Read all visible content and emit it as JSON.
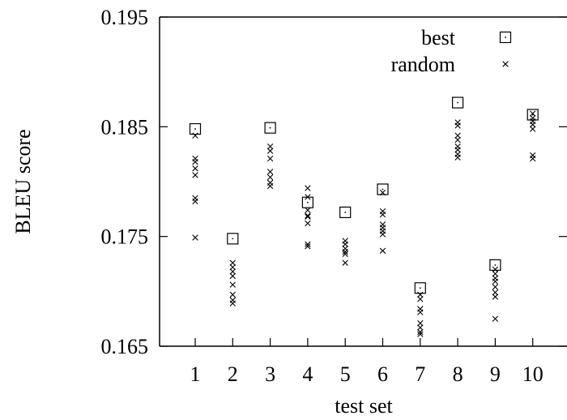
{
  "chart_data": {
    "type": "scatter",
    "xlabel": "test set",
    "ylabel": "BLEU score",
    "ylim": [
      0.165,
      0.195
    ],
    "yticks": [
      "0.165",
      "0.175",
      "0.185",
      "0.195"
    ],
    "x_categories": [
      "1",
      "2",
      "3",
      "4",
      "5",
      "6",
      "7",
      "8",
      "9",
      "10"
    ],
    "legend_position": "top-right",
    "series": [
      {
        "name": "best",
        "marker": "square",
        "points": [
          {
            "x": 1,
            "y": 0.1848
          },
          {
            "x": 2,
            "y": 0.1748
          },
          {
            "x": 3,
            "y": 0.1849
          },
          {
            "x": 4,
            "y": 0.1781
          },
          {
            "x": 5,
            "y": 0.1772
          },
          {
            "x": 6,
            "y": 0.1793
          },
          {
            "x": 7,
            "y": 0.1703
          },
          {
            "x": 8,
            "y": 0.1872
          },
          {
            "x": 9,
            "y": 0.1724
          },
          {
            "x": 10,
            "y": 0.1861
          }
        ]
      },
      {
        "name": "random",
        "marker": "cross",
        "points": [
          {
            "x": 1,
            "y": 0.1842
          },
          {
            "x": 1,
            "y": 0.1821
          },
          {
            "x": 1,
            "y": 0.1818
          },
          {
            "x": 1,
            "y": 0.1812
          },
          {
            "x": 1,
            "y": 0.1806
          },
          {
            "x": 1,
            "y": 0.1785
          },
          {
            "x": 1,
            "y": 0.1782
          },
          {
            "x": 1,
            "y": 0.1749
          },
          {
            "x": 2,
            "y": 0.1726
          },
          {
            "x": 2,
            "y": 0.1722
          },
          {
            "x": 2,
            "y": 0.1718
          },
          {
            "x": 2,
            "y": 0.1714
          },
          {
            "x": 2,
            "y": 0.1706
          },
          {
            "x": 2,
            "y": 0.1697
          },
          {
            "x": 2,
            "y": 0.1692
          },
          {
            "x": 2,
            "y": 0.1689
          },
          {
            "x": 3,
            "y": 0.1832
          },
          {
            "x": 3,
            "y": 0.1828
          },
          {
            "x": 3,
            "y": 0.1821
          },
          {
            "x": 3,
            "y": 0.1809
          },
          {
            "x": 3,
            "y": 0.1804
          },
          {
            "x": 3,
            "y": 0.1799
          },
          {
            "x": 3,
            "y": 0.1796
          },
          {
            "x": 4,
            "y": 0.1794
          },
          {
            "x": 4,
            "y": 0.1786
          },
          {
            "x": 4,
            "y": 0.1774
          },
          {
            "x": 4,
            "y": 0.1769
          },
          {
            "x": 4,
            "y": 0.1768
          },
          {
            "x": 4,
            "y": 0.1762
          },
          {
            "x": 4,
            "y": 0.1743
          },
          {
            "x": 4,
            "y": 0.1741
          },
          {
            "x": 5,
            "y": 0.1746
          },
          {
            "x": 5,
            "y": 0.1743
          },
          {
            "x": 5,
            "y": 0.1739
          },
          {
            "x": 5,
            "y": 0.1736
          },
          {
            "x": 5,
            "y": 0.1734
          },
          {
            "x": 5,
            "y": 0.1726
          },
          {
            "x": 6,
            "y": 0.179
          },
          {
            "x": 6,
            "y": 0.1773
          },
          {
            "x": 6,
            "y": 0.177
          },
          {
            "x": 6,
            "y": 0.1761
          },
          {
            "x": 6,
            "y": 0.1758
          },
          {
            "x": 6,
            "y": 0.1755
          },
          {
            "x": 6,
            "y": 0.1752
          },
          {
            "x": 6,
            "y": 0.1737
          },
          {
            "x": 7,
            "y": 0.1697
          },
          {
            "x": 7,
            "y": 0.1693
          },
          {
            "x": 7,
            "y": 0.1684
          },
          {
            "x": 7,
            "y": 0.1681
          },
          {
            "x": 7,
            "y": 0.1671
          },
          {
            "x": 7,
            "y": 0.1667
          },
          {
            "x": 7,
            "y": 0.1663
          },
          {
            "x": 7,
            "y": 0.1661
          },
          {
            "x": 8,
            "y": 0.1854
          },
          {
            "x": 8,
            "y": 0.1851
          },
          {
            "x": 8,
            "y": 0.1842
          },
          {
            "x": 8,
            "y": 0.1838
          },
          {
            "x": 8,
            "y": 0.1832
          },
          {
            "x": 8,
            "y": 0.1829
          },
          {
            "x": 8,
            "y": 0.1825
          },
          {
            "x": 8,
            "y": 0.1822
          },
          {
            "x": 9,
            "y": 0.172
          },
          {
            "x": 9,
            "y": 0.1716
          },
          {
            "x": 9,
            "y": 0.1712
          },
          {
            "x": 9,
            "y": 0.1709
          },
          {
            "x": 9,
            "y": 0.1704
          },
          {
            "x": 9,
            "y": 0.1699
          },
          {
            "x": 9,
            "y": 0.1695
          },
          {
            "x": 9,
            "y": 0.1675
          },
          {
            "x": 10,
            "y": 0.1862
          },
          {
            "x": 10,
            "y": 0.1858
          },
          {
            "x": 10,
            "y": 0.1855
          },
          {
            "x": 10,
            "y": 0.1852
          },
          {
            "x": 10,
            "y": 0.1848
          },
          {
            "x": 10,
            "y": 0.1824
          },
          {
            "x": 10,
            "y": 0.1821
          }
        ]
      }
    ]
  }
}
